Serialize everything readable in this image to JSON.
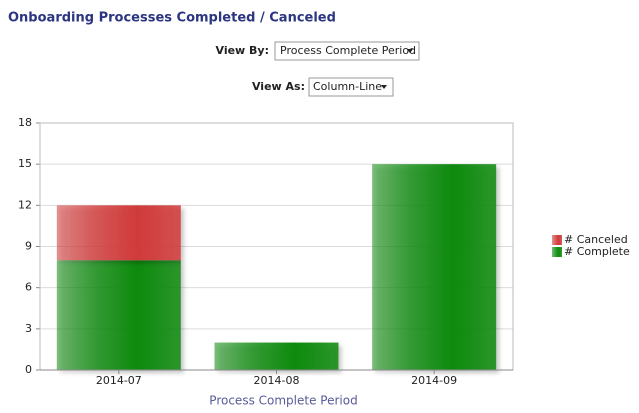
{
  "title": "Onboarding Processes Completed / Canceled",
  "controls": {
    "view_by_label": "View By:",
    "view_by_value": "Process Complete Period",
    "view_as_label": "View As:",
    "view_as_value": "Column-Line"
  },
  "chart_data": {
    "type": "stacked-bar",
    "categories": [
      "2014-07",
      "2014-08",
      "2014-09"
    ],
    "series": [
      {
        "name": "# Complete",
        "color": "#0e8a0e",
        "values": [
          8,
          2,
          15
        ]
      },
      {
        "name": "# Canceled",
        "color": "#d03a3a",
        "values": [
          4,
          0,
          0
        ]
      }
    ],
    "x_label": "Process Complete Period",
    "ylim": [
      0,
      18
    ],
    "yticks": [
      0,
      3,
      6,
      9,
      12,
      15,
      18
    ],
    "grid": true,
    "legend": "right"
  }
}
